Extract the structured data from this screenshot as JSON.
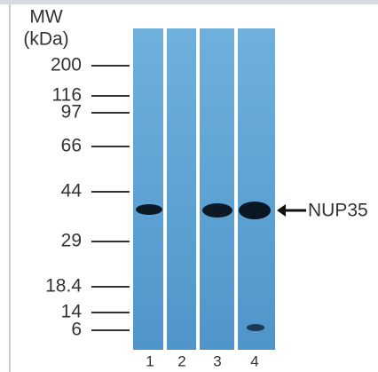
{
  "header": {
    "mw": "MW",
    "unit": "(kDa)"
  },
  "markers": [
    "200",
    "116",
    "97",
    "66",
    "44",
    "29",
    "18.4",
    "14",
    "6"
  ],
  "lanes": [
    "1",
    "2",
    "3",
    "4"
  ],
  "target": "NUP35"
}
